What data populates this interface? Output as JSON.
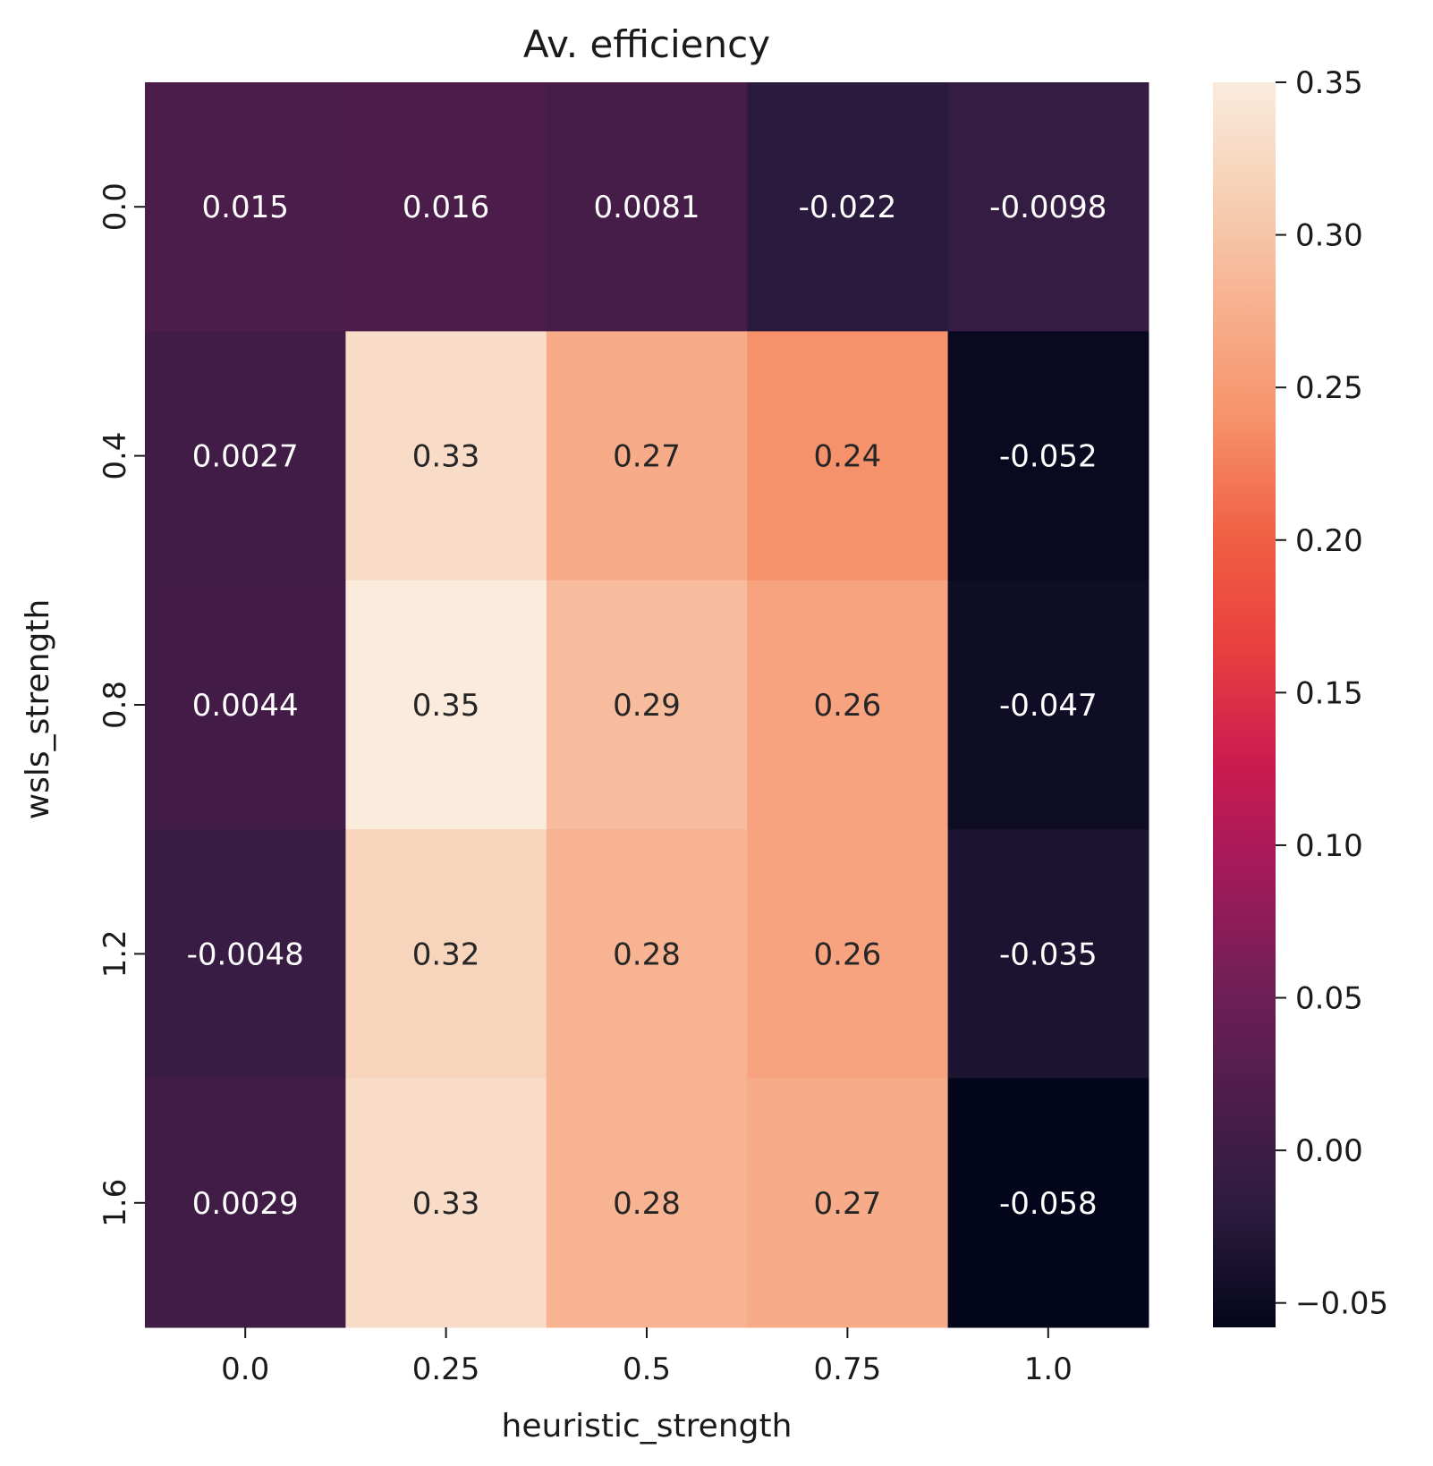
{
  "chart_data": {
    "type": "heatmap",
    "title": "Av. efficiency",
    "xlabel": "heuristic_strength",
    "ylabel": "wsls_strength",
    "x_categories": [
      "0.0",
      "0.25",
      "0.5",
      "0.75",
      "1.0"
    ],
    "y_categories": [
      "0.0",
      "0.4",
      "0.8",
      "1.2",
      "1.6"
    ],
    "values": [
      [
        0.015,
        0.016,
        0.0081,
        -0.022,
        -0.0098
      ],
      [
        0.0027,
        0.33,
        0.27,
        0.24,
        -0.052
      ],
      [
        0.0044,
        0.35,
        0.29,
        0.26,
        -0.047
      ],
      [
        -0.0048,
        0.32,
        0.28,
        0.26,
        -0.035
      ],
      [
        0.0029,
        0.33,
        0.28,
        0.27,
        -0.058
      ]
    ],
    "cell_labels": [
      [
        "0.015",
        "0.016",
        "0.0081",
        "-0.022",
        "-0.0098"
      ],
      [
        "0.0027",
        "0.33",
        "0.27",
        "0.24",
        "-0.052"
      ],
      [
        "0.0044",
        "0.35",
        "0.29",
        "0.26",
        "-0.047"
      ],
      [
        "-0.0048",
        "0.32",
        "0.28",
        "0.26",
        "-0.035"
      ],
      [
        "0.0029",
        "0.33",
        "0.28",
        "0.27",
        "-0.058"
      ]
    ],
    "colorbar": {
      "min": -0.058,
      "max": 0.35,
      "ticks": [
        -0.05,
        0.0,
        0.05,
        0.1,
        0.15,
        0.2,
        0.25,
        0.3,
        0.35
      ],
      "tick_labels": [
        "−0.05",
        "0.00",
        "0.05",
        "0.10",
        "0.15",
        "0.20",
        "0.25",
        "0.30",
        "0.35"
      ]
    },
    "colormap": "rocket",
    "colormap_stops": [
      "#03051a",
      "#2b1b3e",
      "#4c1d4b",
      "#701f57",
      "#a11a5b",
      "#cb1b4f",
      "#e83f3f",
      "#f06043",
      "#f6916a",
      "#f7b08e",
      "#f6cfb4",
      "#faebdd"
    ]
  }
}
